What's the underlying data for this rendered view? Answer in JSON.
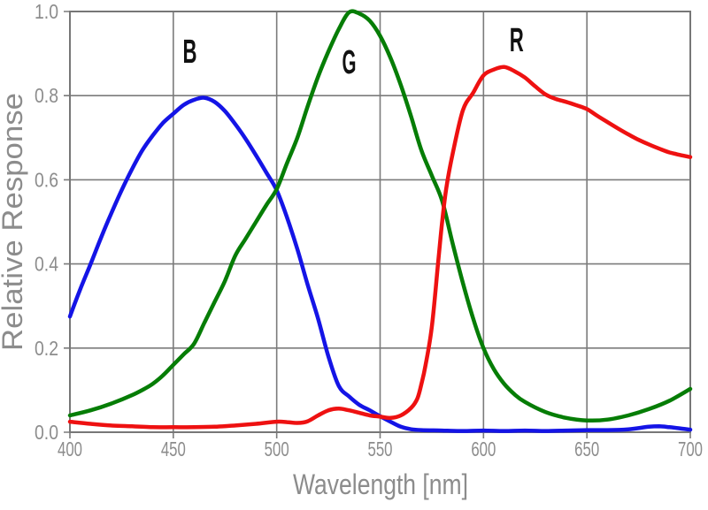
{
  "figure": {
    "background": "#ffffff"
  },
  "styles": {
    "grid_color": "#7b7b7b",
    "border_color": "#777777",
    "axis_text_color": "#8c8c8c",
    "curve_label_color": "#111111",
    "curve_stroke_width": 4.5
  },
  "chart_data": {
    "type": "line",
    "title": "",
    "xlabel": "Wavelength [nm]",
    "ylabel": "Relative Response",
    "xlim": [
      400,
      700
    ],
    "ylim": [
      0,
      1
    ],
    "grid": true,
    "legend_position": "inline-curve-labels",
    "x_ticks": [
      400,
      450,
      500,
      550,
      600,
      650,
      700
    ],
    "x_tick_labels": [
      "400",
      "450",
      "500",
      "550",
      "600",
      "650",
      "700"
    ],
    "y_ticks": [
      0,
      0.2,
      0.4,
      0.6,
      0.8,
      1.0
    ],
    "y_tick_labels": [
      "0.0",
      "0.2",
      "0.4",
      "0.6",
      "0.8",
      "1.0"
    ],
    "series": [
      {
        "name": "B",
        "color": "#1414e6",
        "points": [
          [
            400,
            0.275
          ],
          [
            405,
            0.34
          ],
          [
            410,
            0.4
          ],
          [
            415,
            0.462
          ],
          [
            420,
            0.52
          ],
          [
            425,
            0.575
          ],
          [
            430,
            0.625
          ],
          [
            435,
            0.67
          ],
          [
            440,
            0.705
          ],
          [
            445,
            0.735
          ],
          [
            450,
            0.757
          ],
          [
            455,
            0.778
          ],
          [
            460,
            0.79
          ],
          [
            465,
            0.795
          ],
          [
            470,
            0.785
          ],
          [
            475,
            0.763
          ],
          [
            480,
            0.732
          ],
          [
            485,
            0.697
          ],
          [
            490,
            0.658
          ],
          [
            495,
            0.617
          ],
          [
            500,
            0.575
          ],
          [
            505,
            0.51
          ],
          [
            510,
            0.435
          ],
          [
            515,
            0.35
          ],
          [
            520,
            0.27
          ],
          [
            525,
            0.18
          ],
          [
            530,
            0.11
          ],
          [
            535,
            0.085
          ],
          [
            540,
            0.065
          ],
          [
            545,
            0.052
          ],
          [
            550,
            0.038
          ],
          [
            555,
            0.025
          ],
          [
            560,
            0.013
          ],
          [
            565,
            0.007
          ],
          [
            570,
            0.005
          ],
          [
            580,
            0.004
          ],
          [
            590,
            0.003
          ],
          [
            600,
            0.004
          ],
          [
            610,
            0.003
          ],
          [
            620,
            0.004
          ],
          [
            630,
            0.003
          ],
          [
            640,
            0.004
          ],
          [
            650,
            0.005
          ],
          [
            660,
            0.005
          ],
          [
            670,
            0.007
          ],
          [
            680,
            0.013
          ],
          [
            685,
            0.014
          ],
          [
            690,
            0.012
          ],
          [
            700,
            0.006
          ]
        ]
      },
      {
        "name": "G",
        "color": "#067d06",
        "points": [
          [
            400,
            0.04
          ],
          [
            410,
            0.052
          ],
          [
            420,
            0.068
          ],
          [
            430,
            0.088
          ],
          [
            436,
            0.103
          ],
          [
            440,
            0.115
          ],
          [
            445,
            0.135
          ],
          [
            450,
            0.16
          ],
          [
            455,
            0.185
          ],
          [
            460,
            0.21
          ],
          [
            465,
            0.26
          ],
          [
            470,
            0.31
          ],
          [
            475,
            0.36
          ],
          [
            480,
            0.42
          ],
          [
            485,
            0.46
          ],
          [
            490,
            0.5
          ],
          [
            495,
            0.54
          ],
          [
            500,
            0.578
          ],
          [
            505,
            0.64
          ],
          [
            510,
            0.7
          ],
          [
            515,
            0.775
          ],
          [
            520,
            0.845
          ],
          [
            525,
            0.905
          ],
          [
            530,
            0.958
          ],
          [
            535,
            0.998
          ],
          [
            540,
            0.995
          ],
          [
            545,
            0.978
          ],
          [
            550,
            0.942
          ],
          [
            555,
            0.89
          ],
          [
            560,
            0.825
          ],
          [
            565,
            0.75
          ],
          [
            570,
            0.67
          ],
          [
            575,
            0.61
          ],
          [
            580,
            0.55
          ],
          [
            585,
            0.45
          ],
          [
            590,
            0.355
          ],
          [
            595,
            0.27
          ],
          [
            600,
            0.2
          ],
          [
            605,
            0.15
          ],
          [
            610,
            0.115
          ],
          [
            615,
            0.09
          ],
          [
            620,
            0.072
          ],
          [
            630,
            0.048
          ],
          [
            640,
            0.034
          ],
          [
            650,
            0.028
          ],
          [
            660,
            0.03
          ],
          [
            670,
            0.04
          ],
          [
            680,
            0.055
          ],
          [
            690,
            0.075
          ],
          [
            700,
            0.103
          ]
        ]
      },
      {
        "name": "R",
        "color": "#ee1111",
        "points": [
          [
            400,
            0.025
          ],
          [
            410,
            0.02
          ],
          [
            420,
            0.016
          ],
          [
            430,
            0.014
          ],
          [
            440,
            0.012
          ],
          [
            450,
            0.012
          ],
          [
            460,
            0.012
          ],
          [
            470,
            0.013
          ],
          [
            480,
            0.016
          ],
          [
            490,
            0.02
          ],
          [
            500,
            0.025
          ],
          [
            505,
            0.024
          ],
          [
            510,
            0.022
          ],
          [
            515,
            0.026
          ],
          [
            520,
            0.04
          ],
          [
            525,
            0.052
          ],
          [
            530,
            0.056
          ],
          [
            535,
            0.052
          ],
          [
            540,
            0.046
          ],
          [
            545,
            0.04
          ],
          [
            550,
            0.037
          ],
          [
            555,
            0.034
          ],
          [
            560,
            0.04
          ],
          [
            565,
            0.058
          ],
          [
            568,
            0.08
          ],
          [
            570,
            0.115
          ],
          [
            572,
            0.16
          ],
          [
            575,
            0.25
          ],
          [
            578,
            0.4
          ],
          [
            580,
            0.5
          ],
          [
            582,
            0.58
          ],
          [
            585,
            0.66
          ],
          [
            590,
            0.765
          ],
          [
            595,
            0.807
          ],
          [
            600,
            0.848
          ],
          [
            605,
            0.862
          ],
          [
            610,
            0.868
          ],
          [
            615,
            0.858
          ],
          [
            620,
            0.843
          ],
          [
            625,
            0.822
          ],
          [
            630,
            0.803
          ],
          [
            635,
            0.792
          ],
          [
            640,
            0.785
          ],
          [
            645,
            0.777
          ],
          [
            650,
            0.768
          ],
          [
            655,
            0.752
          ],
          [
            660,
            0.737
          ],
          [
            665,
            0.722
          ],
          [
            670,
            0.708
          ],
          [
            675,
            0.695
          ],
          [
            680,
            0.684
          ],
          [
            685,
            0.674
          ],
          [
            690,
            0.665
          ],
          [
            695,
            0.659
          ],
          [
            700,
            0.654
          ]
        ]
      }
    ],
    "annotations": [
      {
        "text": "B",
        "x_nm": 458,
        "y_rel": 0.878
      },
      {
        "text": "G",
        "x_nm": 535,
        "y_rel": 0.853
      },
      {
        "text": "R",
        "x_nm": 616,
        "y_rel": 0.905
      }
    ]
  }
}
